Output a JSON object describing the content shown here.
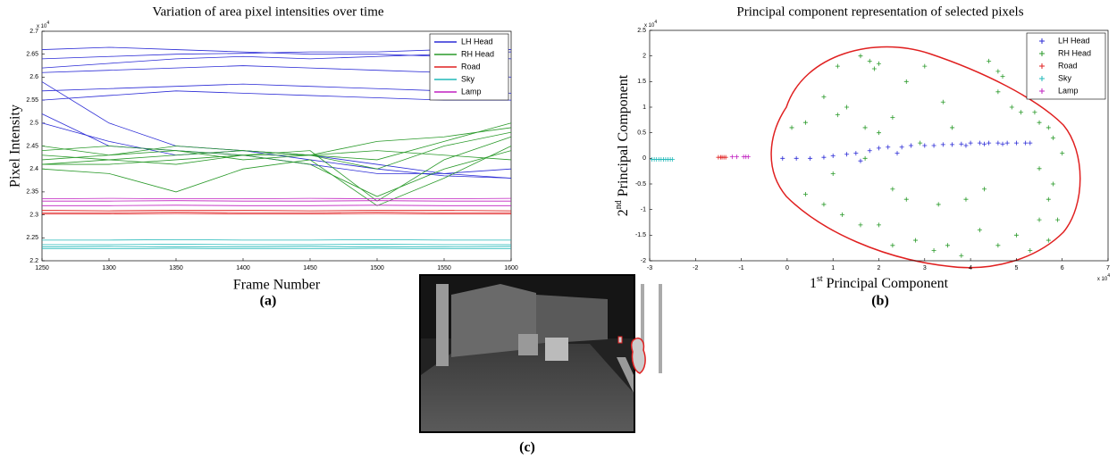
{
  "chart_data": [
    {
      "type": "line",
      "title": "Variation of area pixel intensities over time",
      "xlabel": "Frame Number",
      "ylabel": "Pixel Intensity",
      "y_multiplier": [
        "x 10",
        "4"
      ],
      "x": [
        1250,
        1300,
        1350,
        1400,
        1450,
        1500,
        1550,
        1600
      ],
      "xlim": [
        1250,
        1600
      ],
      "xticks": [
        1250,
        1300,
        1350,
        1400,
        1450,
        1500,
        1550,
        1600
      ],
      "ylim": [
        2.2,
        2.7
      ],
      "yticks": [
        2.2,
        2.25,
        2.3,
        2.35,
        2.4,
        2.45,
        2.5,
        2.55,
        2.6,
        2.65,
        2.7
      ],
      "legend": "upper right",
      "series": [
        {
          "name": "LH Head",
          "color": "#2b2bd6",
          "lines": [
            [
              2.64,
              2.645,
              2.65,
              2.652,
              2.655,
              2.655,
              2.66,
              2.66
            ],
            [
              2.62,
              2.63,
              2.64,
              2.645,
              2.64,
              2.645,
              2.65,
              2.655
            ],
            [
              2.66,
              2.665,
              2.66,
              2.655,
              2.65,
              2.65,
              2.645,
              2.64
            ],
            [
              2.61,
              2.615,
              2.62,
              2.625,
              2.62,
              2.615,
              2.61,
              2.6
            ],
            [
              2.57,
              2.575,
              2.58,
              2.585,
              2.58,
              2.575,
              2.57,
              2.565
            ],
            [
              2.55,
              2.56,
              2.57,
              2.565,
              2.56,
              2.555,
              2.55,
              2.55
            ],
            [
              2.5,
              2.46,
              2.43,
              2.44,
              2.43,
              2.41,
              2.39,
              2.38
            ],
            [
              2.59,
              2.5,
              2.45,
              2.44,
              2.42,
              2.4,
              2.385,
              2.38
            ],
            [
              2.52,
              2.45,
              2.44,
              2.43,
              2.41,
              2.39,
              2.39,
              2.4
            ]
          ]
        },
        {
          "name": "RH Head",
          "color": "#2a9a2a",
          "lines": [
            [
              2.41,
              2.42,
              2.43,
              2.44,
              2.43,
              2.42,
              2.46,
              2.5
            ],
            [
              2.42,
              2.43,
              2.45,
              2.44,
              2.43,
              2.4,
              2.45,
              2.48
            ],
            [
              2.44,
              2.45,
              2.44,
              2.43,
              2.43,
              2.46,
              2.47,
              2.49
            ],
            [
              2.41,
              2.41,
              2.42,
              2.43,
              2.44,
              2.33,
              2.42,
              2.47
            ],
            [
              2.4,
              2.39,
              2.35,
              2.4,
              2.42,
              2.32,
              2.38,
              2.45
            ],
            [
              2.45,
              2.43,
              2.44,
              2.42,
              2.43,
              2.44,
              2.43,
              2.42
            ],
            [
              2.43,
              2.42,
              2.41,
              2.43,
              2.41,
              2.34,
              2.4,
              2.44
            ]
          ]
        },
        {
          "name": "Road",
          "color": "#e02020",
          "lines": [
            [
              2.305,
              2.305,
              2.306,
              2.305,
              2.305,
              2.306,
              2.305,
              2.305
            ],
            [
              2.31,
              2.309,
              2.31,
              2.31,
              2.309,
              2.31,
              2.31,
              2.309
            ],
            [
              2.302,
              2.302,
              2.303,
              2.302,
              2.302,
              2.303,
              2.302,
              2.302
            ]
          ]
        },
        {
          "name": "Sky",
          "color": "#20b8b8",
          "lines": [
            [
              2.23,
              2.231,
              2.23,
              2.23,
              2.231,
              2.23,
              2.23,
              2.231
            ],
            [
              2.235,
              2.235,
              2.236,
              2.235,
              2.235,
              2.236,
              2.235,
              2.235
            ],
            [
              2.245,
              2.245,
              2.246,
              2.245,
              2.245,
              2.246,
              2.245,
              2.245
            ],
            [
              2.226,
              2.226,
              2.227,
              2.226,
              2.226,
              2.227,
              2.226,
              2.226
            ]
          ]
        },
        {
          "name": "Lamp",
          "color": "#c020c0",
          "lines": [
            [
              2.335,
              2.336,
              2.335,
              2.335,
              2.336,
              2.335,
              2.335,
              2.336
            ],
            [
              2.33,
              2.33,
              2.331,
              2.33,
              2.33,
              2.331,
              2.33,
              2.33
            ],
            [
              2.32,
              2.32,
              2.321,
              2.32,
              2.32,
              2.321,
              2.32,
              2.32
            ]
          ]
        }
      ]
    },
    {
      "type": "scatter",
      "title": "Principal component representation of selected pixels",
      "xlabel": [
        "1",
        "st",
        " Principal Component"
      ],
      "ylabel": [
        "2",
        "nd",
        " Principal Component"
      ],
      "x_multiplier": [
        "x 10",
        "4"
      ],
      "y_multiplier": [
        "x 10",
        "4"
      ],
      "xlim": [
        -3,
        7
      ],
      "xticks": [
        -3,
        -2,
        -1,
        0,
        1,
        2,
        3,
        4,
        5,
        6,
        7
      ],
      "ylim": [
        -2,
        2.5
      ],
      "yticks": [
        -2,
        -1.5,
        -1,
        -0.5,
        0,
        0.5,
        1,
        1.5,
        2,
        2.5
      ],
      "legend": "upper right",
      "series": [
        {
          "name": "LH Head",
          "color": "#2b2bd6",
          "x": [
            -0.1,
            0.2,
            0.5,
            0.8,
            1.0,
            1.3,
            1.5,
            1.8,
            2.0,
            2.2,
            2.5,
            2.7,
            3.0,
            3.2,
            3.4,
            3.6,
            3.8,
            4.0,
            4.2,
            4.4,
            4.6,
            4.8,
            5.0,
            5.2,
            5.3,
            3.9,
            4.3,
            4.7,
            1.6,
            2.4
          ],
          "y": [
            0,
            0,
            0,
            0.02,
            0.05,
            0.08,
            0.1,
            0.15,
            0.2,
            0.22,
            0.22,
            0.25,
            0.25,
            0.25,
            0.27,
            0.27,
            0.28,
            0.3,
            0.3,
            0.3,
            0.3,
            0.3,
            0.3,
            0.3,
            0.3,
            0.25,
            0.28,
            0.28,
            -0.05,
            0.1
          ]
        },
        {
          "name": "RH Head",
          "color": "#2a9a2a",
          "x": [
            1.1,
            1.6,
            1.8,
            1.9,
            2.0,
            0.8,
            1.3,
            1.1,
            0.4,
            0.1,
            1.7,
            2.3,
            2.0,
            3.0,
            2.6,
            3.4,
            4.4,
            4.6,
            4.7,
            4.6,
            4.9,
            5.1,
            5.4,
            5.5,
            5.7,
            5.8,
            6.0,
            5.5,
            5.8,
            5.7,
            5.9,
            5.5,
            5.7,
            5.3,
            5.0,
            4.6,
            4.2,
            3.8,
            3.5,
            3.2,
            2.8,
            2.3,
            2.0,
            1.6,
            1.2,
            0.8,
            0.4,
            2.3,
            1.0,
            1.7,
            2.6,
            3.3,
            4.3,
            3.9,
            2.9,
            3.6
          ],
          "y": [
            1.8,
            2.0,
            1.9,
            1.75,
            1.85,
            1.2,
            1.0,
            0.85,
            0.7,
            0.6,
            0.6,
            0.8,
            0.5,
            1.8,
            1.5,
            1.1,
            1.9,
            1.7,
            1.6,
            1.3,
            1.0,
            0.9,
            0.9,
            0.7,
            0.6,
            0.4,
            0.1,
            -0.2,
            -0.5,
            -0.8,
            -1.2,
            -1.2,
            -1.6,
            -1.8,
            -1.5,
            -1.7,
            -1.4,
            -1.9,
            -1.7,
            -1.8,
            -1.6,
            -1.7,
            -1.3,
            -1.3,
            -1.1,
            -0.9,
            -0.7,
            -0.6,
            -0.3,
            0.0,
            -0.8,
            -0.9,
            -0.6,
            -0.8,
            0.3,
            0.6
          ]
        },
        {
          "name": "Road",
          "color": "#e02020",
          "x": [
            -1.5,
            -1.45,
            -1.42,
            -1.38,
            -1.34
          ],
          "y": [
            0.02,
            0.02,
            0.02,
            0.02,
            0.02
          ]
        },
        {
          "name": "Sky",
          "color": "#20b8b8",
          "x": [
            -2.95,
            -2.9,
            -2.85,
            -2.8,
            -2.75,
            -2.7,
            -2.65,
            -2.6,
            -2.55,
            -2.5
          ],
          "y": [
            -0.02,
            -0.02,
            -0.02,
            -0.02,
            -0.02,
            -0.02,
            -0.02,
            -0.02,
            -0.02,
            -0.02
          ]
        },
        {
          "name": "Lamp",
          "color": "#c020c0",
          "x": [
            -1.2,
            -1.1,
            -0.95,
            -0.9,
            -0.85
          ],
          "y": [
            0.03,
            0.03,
            0.03,
            0.03,
            0.03
          ]
        }
      ]
    }
  ],
  "captions": [
    "(a)",
    "(b)",
    "(c)"
  ]
}
